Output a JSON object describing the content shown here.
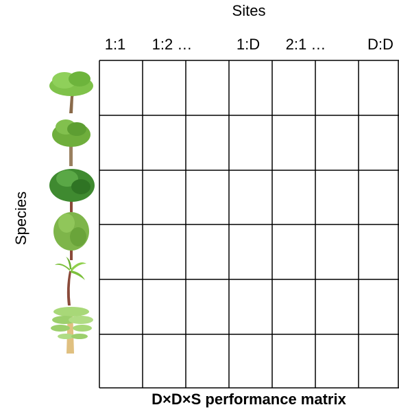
{
  "header": {
    "title": "Sites"
  },
  "columns": [
    "1:1",
    "1:2 …",
    "1:D",
    "2:1 …",
    "D:D"
  ],
  "row_axis": {
    "label": "Species"
  },
  "caption": "D×D×S performance matrix"
}
